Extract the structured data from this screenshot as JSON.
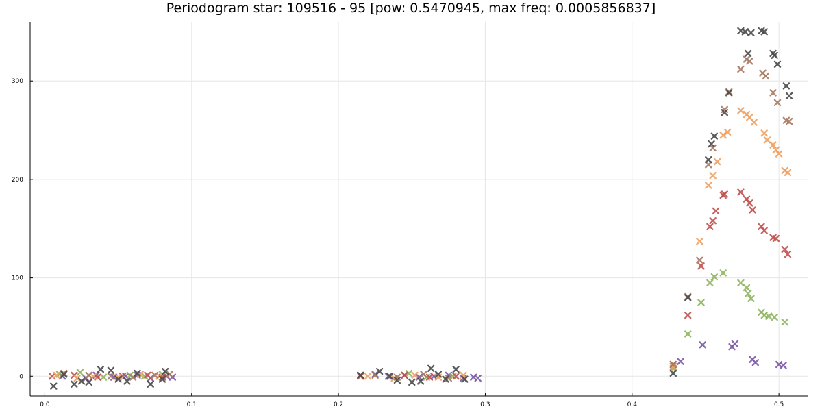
{
  "chart_data": {
    "type": "scatter",
    "title": "Periodogram star: 109516 - 95 [pow: 0.5470945, max freq: 0.0005856837]",
    "xlabel": "",
    "ylabel": "",
    "xlim": [
      -0.01,
      0.52
    ],
    "ylim": [
      -20,
      360
    ],
    "x_ticks": [
      {
        "value": 0.0,
        "label": "0.0"
      },
      {
        "value": 0.1,
        "label": "0.1"
      },
      {
        "value": 0.2,
        "label": "0.2"
      },
      {
        "value": 0.3,
        "label": "0.3"
      },
      {
        "value": 0.4,
        "label": "0.4"
      },
      {
        "value": 0.5,
        "label": "0.5"
      }
    ],
    "y_ticks": [
      {
        "value": 0,
        "label": "0"
      },
      {
        "value": 100,
        "label": "100"
      },
      {
        "value": 200,
        "label": "200"
      },
      {
        "value": 300,
        "label": "300"
      }
    ],
    "grid": true,
    "legend": "none",
    "marker": "x",
    "series": [
      {
        "color": "#7b5aa6",
        "points": [
          [
            0.012,
            0
          ],
          [
            0.028,
            -2
          ],
          [
            0.035,
            1
          ],
          [
            0.047,
            -1
          ],
          [
            0.055,
            0
          ],
          [
            0.063,
            1
          ],
          [
            0.072,
            -2
          ],
          [
            0.083,
            0
          ],
          [
            0.087,
            -1
          ],
          [
            0.225,
            2
          ],
          [
            0.234,
            0
          ],
          [
            0.245,
            1
          ],
          [
            0.255,
            -1
          ],
          [
            0.265,
            0
          ],
          [
            0.275,
            1
          ],
          [
            0.285,
            -2
          ],
          [
            0.292,
            -1
          ],
          [
            0.295,
            -2
          ],
          [
            0.428,
            10
          ],
          [
            0.433,
            15
          ],
          [
            0.448,
            32
          ],
          [
            0.468,
            30
          ],
          [
            0.47,
            33
          ],
          [
            0.482,
            17
          ],
          [
            0.484,
            14
          ],
          [
            0.5,
            12
          ],
          [
            0.503,
            11
          ]
        ]
      },
      {
        "color": "#8fb560",
        "points": [
          [
            0.01,
            2
          ],
          [
            0.024,
            4
          ],
          [
            0.04,
            -1
          ],
          [
            0.058,
            1
          ],
          [
            0.068,
            0
          ],
          [
            0.08,
            2
          ],
          [
            0.215,
            1
          ],
          [
            0.248,
            3
          ],
          [
            0.26,
            -1
          ],
          [
            0.278,
            0
          ],
          [
            0.428,
            8
          ],
          [
            0.438,
            43
          ],
          [
            0.447,
            75
          ],
          [
            0.453,
            95
          ],
          [
            0.456,
            101
          ],
          [
            0.462,
            105
          ],
          [
            0.474,
            95
          ],
          [
            0.478,
            90
          ],
          [
            0.479,
            84
          ],
          [
            0.481,
            79
          ],
          [
            0.488,
            65
          ],
          [
            0.49,
            62
          ],
          [
            0.493,
            61
          ],
          [
            0.497,
            60
          ],
          [
            0.504,
            55
          ]
        ]
      },
      {
        "color": "#c0504d",
        "points": [
          [
            0.005,
            0
          ],
          [
            0.02,
            1
          ],
          [
            0.036,
            -1
          ],
          [
            0.053,
            0
          ],
          [
            0.07,
            1
          ],
          [
            0.08,
            -1
          ],
          [
            0.215,
            0
          ],
          [
            0.245,
            1
          ],
          [
            0.262,
            -1
          ],
          [
            0.28,
            0
          ],
          [
            0.428,
            12
          ],
          [
            0.438,
            62
          ],
          [
            0.447,
            112
          ],
          [
            0.453,
            152
          ],
          [
            0.455,
            158
          ],
          [
            0.457,
            168
          ],
          [
            0.462,
            184
          ],
          [
            0.463,
            185
          ],
          [
            0.474,
            187
          ],
          [
            0.478,
            180
          ],
          [
            0.48,
            176
          ],
          [
            0.482,
            169
          ],
          [
            0.488,
            152
          ],
          [
            0.49,
            148
          ],
          [
            0.496,
            141
          ],
          [
            0.498,
            140
          ],
          [
            0.504,
            129
          ],
          [
            0.506,
            124
          ]
        ]
      },
      {
        "color": "#f0a060",
        "points": [
          [
            0.008,
            1
          ],
          [
            0.022,
            -2
          ],
          [
            0.033,
            0
          ],
          [
            0.05,
            -1
          ],
          [
            0.065,
            2
          ],
          [
            0.078,
            0
          ],
          [
            0.22,
            0
          ],
          [
            0.238,
            -2
          ],
          [
            0.252,
            1
          ],
          [
            0.268,
            -1
          ],
          [
            0.285,
            1
          ],
          [
            0.428,
            10
          ],
          [
            0.446,
            137
          ],
          [
            0.452,
            194
          ],
          [
            0.455,
            204
          ],
          [
            0.458,
            218
          ],
          [
            0.462,
            245
          ],
          [
            0.465,
            248
          ],
          [
            0.474,
            270
          ],
          [
            0.478,
            266
          ],
          [
            0.48,
            263
          ],
          [
            0.483,
            258
          ],
          [
            0.49,
            247
          ],
          [
            0.492,
            240
          ],
          [
            0.496,
            235
          ],
          [
            0.498,
            230
          ],
          [
            0.5,
            226
          ],
          [
            0.504,
            209
          ],
          [
            0.506,
            207
          ]
        ]
      },
      {
        "color": "#a87a62",
        "points": [
          [
            0.013,
            3
          ],
          [
            0.03,
            1
          ],
          [
            0.045,
            0
          ],
          [
            0.06,
            -1
          ],
          [
            0.075,
            1
          ],
          [
            0.085,
            2
          ],
          [
            0.225,
            1
          ],
          [
            0.24,
            -1
          ],
          [
            0.258,
            2
          ],
          [
            0.275,
            -2
          ],
          [
            0.428,
            12
          ],
          [
            0.438,
            81
          ],
          [
            0.446,
            118
          ],
          [
            0.452,
            215
          ],
          [
            0.455,
            232
          ],
          [
            0.463,
            271
          ],
          [
            0.466,
            289
          ],
          [
            0.474,
            312
          ],
          [
            0.478,
            322
          ],
          [
            0.48,
            320
          ],
          [
            0.489,
            308
          ],
          [
            0.491,
            305
          ],
          [
            0.496,
            288
          ],
          [
            0.499,
            278
          ],
          [
            0.505,
            260
          ],
          [
            0.507,
            259
          ]
        ]
      },
      {
        "color": "#4a4a4a",
        "points": [
          [
            0.006,
            -10
          ],
          [
            0.013,
            2
          ],
          [
            0.02,
            -8
          ],
          [
            0.025,
            -5
          ],
          [
            0.03,
            -6
          ],
          [
            0.038,
            7
          ],
          [
            0.045,
            6
          ],
          [
            0.05,
            -3
          ],
          [
            0.056,
            -5
          ],
          [
            0.063,
            3
          ],
          [
            0.072,
            -8
          ],
          [
            0.08,
            -3
          ],
          [
            0.082,
            5
          ],
          [
            0.215,
            1
          ],
          [
            0.228,
            5
          ],
          [
            0.235,
            0
          ],
          [
            0.24,
            -4
          ],
          [
            0.25,
            -6
          ],
          [
            0.256,
            -5
          ],
          [
            0.263,
            8
          ],
          [
            0.268,
            2
          ],
          [
            0.273,
            -3
          ],
          [
            0.28,
            7
          ],
          [
            0.286,
            -3
          ],
          [
            0.428,
            3
          ],
          [
            0.438,
            80
          ],
          [
            0.452,
            220
          ],
          [
            0.454,
            236
          ],
          [
            0.456,
            244
          ],
          [
            0.463,
            268
          ],
          [
            0.466,
            288
          ],
          [
            0.474,
            351
          ],
          [
            0.477,
            350
          ],
          [
            0.479,
            328
          ],
          [
            0.481,
            349
          ],
          [
            0.488,
            351
          ],
          [
            0.49,
            350
          ],
          [
            0.496,
            328
          ],
          [
            0.497,
            326
          ],
          [
            0.499,
            317
          ],
          [
            0.505,
            295
          ],
          [
            0.507,
            285
          ]
        ]
      }
    ]
  }
}
